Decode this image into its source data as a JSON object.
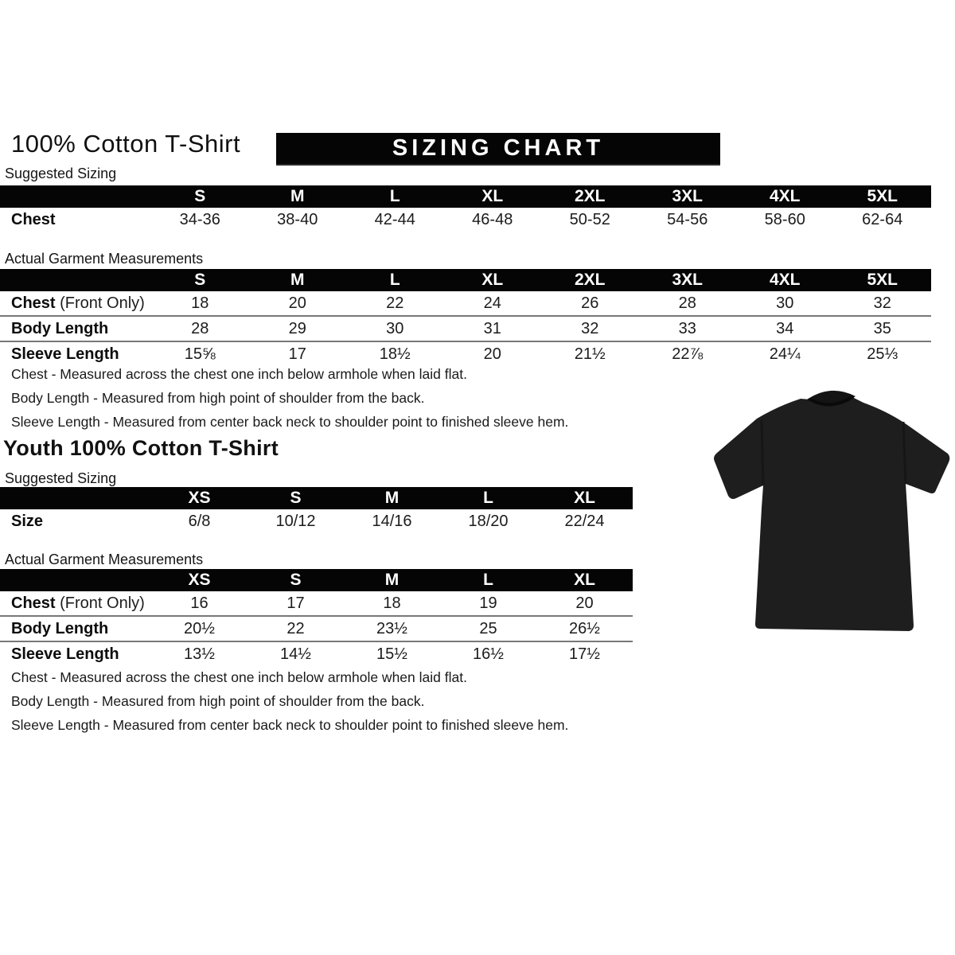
{
  "page": {
    "title": "100% Cotton T-Shirt",
    "banner": "SIZING CHART",
    "youth_title": "Youth 100% Cotton T-Shirt",
    "colors": {
      "header_bar": "#050505",
      "header_text": "#ffffff",
      "row_divider": "#787878",
      "shirt": "#1e1e1e"
    }
  },
  "adult": {
    "suggested": {
      "label": "Suggested Sizing",
      "columns": [
        "S",
        "M",
        "L",
        "XL",
        "2XL",
        "3XL",
        "4XL",
        "5XL"
      ],
      "rows": [
        {
          "label": "Chest",
          "label_suffix": "",
          "values": [
            "34-36",
            "38-40",
            "42-44",
            "46-48",
            "50-52",
            "54-56",
            "58-60",
            "62-64"
          ]
        }
      ]
    },
    "actual": {
      "label": "Actual Garment Measurements",
      "columns": [
        "S",
        "M",
        "L",
        "XL",
        "2XL",
        "3XL",
        "4XL",
        "5XL"
      ],
      "rows": [
        {
          "label": "Chest",
          "label_suffix": " (Front Only)",
          "values": [
            "18",
            "20",
            "22",
            "24",
            "26",
            "28",
            "30",
            "32"
          ]
        },
        {
          "label": "Body Length",
          "label_suffix": "",
          "values": [
            "28",
            "29",
            "30",
            "31",
            "32",
            "33",
            "34",
            "35"
          ]
        },
        {
          "label": "Sleeve Length",
          "label_suffix": "",
          "values": [
            "15⅝",
            "17",
            "18½",
            "20",
            "21½",
            "22⅞",
            "24¼",
            "25⅓"
          ]
        }
      ]
    },
    "notes": [
      "Chest - Measured across the chest one inch below armhole when laid flat.",
      "Body Length - Measured from high point of shoulder from the back.",
      "Sleeve Length - Measured from center back neck to shoulder point to finished sleeve hem."
    ]
  },
  "youth": {
    "suggested": {
      "label": "Suggested Sizing",
      "columns": [
        "XS",
        "S",
        "M",
        "L",
        "XL"
      ],
      "rows": [
        {
          "label": "Size",
          "label_suffix": "",
          "values": [
            "6/8",
            "10/12",
            "14/16",
            "18/20",
            "22/24"
          ]
        }
      ]
    },
    "actual": {
      "label": "Actual Garment Measurements",
      "columns": [
        "XS",
        "S",
        "M",
        "L",
        "XL"
      ],
      "rows": [
        {
          "label": "Chest",
          "label_suffix": " (Front Only)",
          "values": [
            "16",
            "17",
            "18",
            "19",
            "20"
          ]
        },
        {
          "label": "Body Length",
          "label_suffix": "",
          "values": [
            "20½",
            "22",
            "23½",
            "25",
            "26½"
          ]
        },
        {
          "label": "Sleeve Length",
          "label_suffix": "",
          "values": [
            "13½",
            "14½",
            "15½",
            "16½",
            "17½"
          ]
        }
      ]
    },
    "notes": [
      "Chest - Measured across the chest one inch below armhole when laid flat.",
      "Body Length - Measured from high point of shoulder from the back.",
      "Sleeve Length - Measured from center back neck to shoulder point to finished sleeve hem."
    ]
  },
  "shirt_image": {
    "alt": "black short-sleeve crew-neck t-shirt"
  }
}
